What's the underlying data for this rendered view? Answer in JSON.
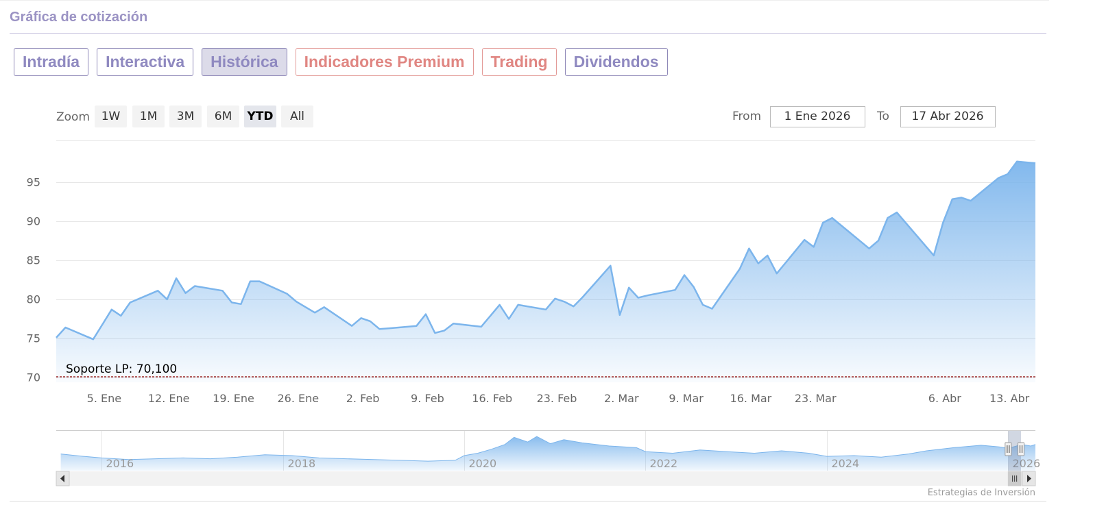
{
  "header": {
    "title": "Gráfica de cotización"
  },
  "tabs": [
    {
      "label": "Intradía",
      "state": "normal"
    },
    {
      "label": "Interactiva",
      "state": "normal"
    },
    {
      "label": "Histórica",
      "state": "active"
    },
    {
      "label": "Indicadores Premium",
      "state": "premium"
    },
    {
      "label": "Trading",
      "state": "premium"
    },
    {
      "label": "Dividendos",
      "state": "normal"
    }
  ],
  "range_selector": {
    "zoom_label": "Zoom",
    "buttons": [
      "1W",
      "1M",
      "3M",
      "6M",
      "YTD",
      "All"
    ],
    "selected": "YTD",
    "from_label": "From",
    "from_value": "1 Ene 2026",
    "to_label": "To",
    "to_value": "17 Abr 2026"
  },
  "chart_data": {
    "type": "area",
    "x_start": "2026-01-01",
    "x_end": "2026-04-17",
    "ylim": [
      69.4,
      100.3
    ],
    "y_ticks": [
      70,
      75,
      80,
      85,
      90,
      95
    ],
    "x_tick_labels": [
      "5. Ene",
      "12. Ene",
      "19. Ene",
      "26. Ene",
      "2. Feb",
      "9. Feb",
      "16. Feb",
      "23. Feb",
      "2. Mar",
      "9. Mar",
      "16. Mar",
      "23. Mar",
      "6. Abr",
      "13. Abr"
    ],
    "x_tick_dates": [
      "2026-01-05",
      "2026-01-12",
      "2026-01-19",
      "2026-01-26",
      "2026-02-02",
      "2026-02-09",
      "2026-02-16",
      "2026-02-23",
      "2026-03-02",
      "2026-03-09",
      "2026-03-16",
      "2026-03-23",
      "2026-04-06",
      "2026-04-13"
    ],
    "series": [
      {
        "values": [
          [
            "2026-01-01",
            75.1
          ],
          [
            "2026-01-02",
            76.4
          ],
          [
            "2026-01-05",
            74.9
          ],
          [
            "2026-01-06",
            76.8
          ],
          [
            "2026-01-07",
            78.7
          ],
          [
            "2026-01-08",
            77.9
          ],
          [
            "2026-01-09",
            79.6
          ],
          [
            "2026-01-12",
            81.1
          ],
          [
            "2026-01-13",
            80.0
          ],
          [
            "2026-01-14",
            82.7
          ],
          [
            "2026-01-15",
            80.8
          ],
          [
            "2026-01-16",
            81.7
          ],
          [
            "2026-01-19",
            81.1
          ],
          [
            "2026-01-20",
            79.6
          ],
          [
            "2026-01-21",
            79.4
          ],
          [
            "2026-01-22",
            82.3
          ],
          [
            "2026-01-23",
            82.3
          ],
          [
            "2026-01-26",
            80.7
          ],
          [
            "2026-01-27",
            79.7
          ],
          [
            "2026-01-28",
            79.0
          ],
          [
            "2026-01-29",
            78.3
          ],
          [
            "2026-01-30",
            79.0
          ],
          [
            "2026-02-02",
            76.6
          ],
          [
            "2026-02-03",
            77.6
          ],
          [
            "2026-02-04",
            77.2
          ],
          [
            "2026-02-05",
            76.2
          ],
          [
            "2026-02-06",
            76.3
          ],
          [
            "2026-02-09",
            76.6
          ],
          [
            "2026-02-10",
            78.1
          ],
          [
            "2026-02-11",
            75.7
          ],
          [
            "2026-02-12",
            76.0
          ],
          [
            "2026-02-13",
            76.9
          ],
          [
            "2026-02-16",
            76.5
          ],
          [
            "2026-02-17",
            77.9
          ],
          [
            "2026-02-18",
            79.3
          ],
          [
            "2026-02-19",
            77.5
          ],
          [
            "2026-02-20",
            79.3
          ],
          [
            "2026-02-23",
            78.7
          ],
          [
            "2026-02-24",
            80.1
          ],
          [
            "2026-02-25",
            79.7
          ],
          [
            "2026-02-26",
            79.1
          ],
          [
            "2026-02-27",
            80.3
          ],
          [
            "2026-03-02",
            84.3
          ],
          [
            "2026-03-03",
            78.0
          ],
          [
            "2026-03-04",
            81.5
          ],
          [
            "2026-03-05",
            80.2
          ],
          [
            "2026-03-06",
            80.5
          ],
          [
            "2026-03-09",
            81.2
          ],
          [
            "2026-03-10",
            83.1
          ],
          [
            "2026-03-11",
            81.6
          ],
          [
            "2026-03-12",
            79.3
          ],
          [
            "2026-03-13",
            78.8
          ],
          [
            "2026-03-16",
            83.9
          ],
          [
            "2026-03-17",
            86.5
          ],
          [
            "2026-03-18",
            84.6
          ],
          [
            "2026-03-19",
            85.6
          ],
          [
            "2026-03-20",
            83.3
          ],
          [
            "2026-03-23",
            87.6
          ],
          [
            "2026-03-24",
            86.7
          ],
          [
            "2026-03-25",
            89.8
          ],
          [
            "2026-03-26",
            90.4
          ],
          [
            "2026-03-30",
            86.5
          ],
          [
            "2026-03-31",
            87.5
          ],
          [
            "2026-04-01",
            90.4
          ],
          [
            "2026-04-02",
            91.1
          ],
          [
            "2026-04-06",
            85.6
          ],
          [
            "2026-04-07",
            89.8
          ],
          [
            "2026-04-08",
            92.8
          ],
          [
            "2026-04-09",
            93.0
          ],
          [
            "2026-04-10",
            92.6
          ],
          [
            "2026-04-13",
            95.5
          ],
          [
            "2026-04-14",
            96.0
          ],
          [
            "2026-04-15",
            97.6
          ],
          [
            "2026-04-16",
            97.5
          ],
          [
            "2026-04-17",
            97.4
          ]
        ]
      }
    ],
    "support_line": {
      "label": "Soporte LP: 70,100",
      "value": 70.1,
      "color": "#8b0000"
    },
    "navigator": {
      "year_labels": [
        "2016",
        "2018",
        "2020",
        "2022",
        "2024",
        "2026"
      ],
      "x_start": 2015.5,
      "x_end": 2026.3,
      "ylim": [
        55,
        105
      ],
      "values": [
        [
          2015.55,
          76
        ],
        [
          2015.8,
          73
        ],
        [
          2016.0,
          71
        ],
        [
          2016.3,
          69
        ],
        [
          2016.6,
          70
        ],
        [
          2016.9,
          71
        ],
        [
          2017.2,
          70
        ],
        [
          2017.5,
          72
        ],
        [
          2017.8,
          75
        ],
        [
          2018.1,
          74
        ],
        [
          2018.4,
          71
        ],
        [
          2018.7,
          70
        ],
        [
          2019.0,
          69
        ],
        [
          2019.3,
          68
        ],
        [
          2019.6,
          67
        ],
        [
          2019.9,
          68
        ],
        [
          2020.0,
          74
        ],
        [
          2020.15,
          77
        ],
        [
          2020.3,
          82
        ],
        [
          2020.45,
          88
        ],
        [
          2020.55,
          97
        ],
        [
          2020.7,
          91
        ],
        [
          2020.8,
          98
        ],
        [
          2020.95,
          89
        ],
        [
          2021.1,
          94
        ],
        [
          2021.3,
          90
        ],
        [
          2021.6,
          86
        ],
        [
          2021.9,
          84
        ],
        [
          2022.0,
          79
        ],
        [
          2022.3,
          77
        ],
        [
          2022.6,
          81
        ],
        [
          2022.9,
          79
        ],
        [
          2023.2,
          77
        ],
        [
          2023.5,
          80
        ],
        [
          2023.8,
          77
        ],
        [
          2024.0,
          73
        ],
        [
          2024.3,
          74
        ],
        [
          2024.6,
          72
        ],
        [
          2024.9,
          76
        ],
        [
          2025.1,
          80
        ],
        [
          2025.4,
          84
        ],
        [
          2025.7,
          87
        ],
        [
          2025.9,
          85
        ],
        [
          2026.0,
          83
        ],
        [
          2026.15,
          88
        ],
        [
          2026.25,
          86
        ],
        [
          2026.3,
          88
        ]
      ],
      "window_start": 2026.0,
      "window_end": 2026.3
    },
    "credits": "Estrategias de Inversión"
  }
}
